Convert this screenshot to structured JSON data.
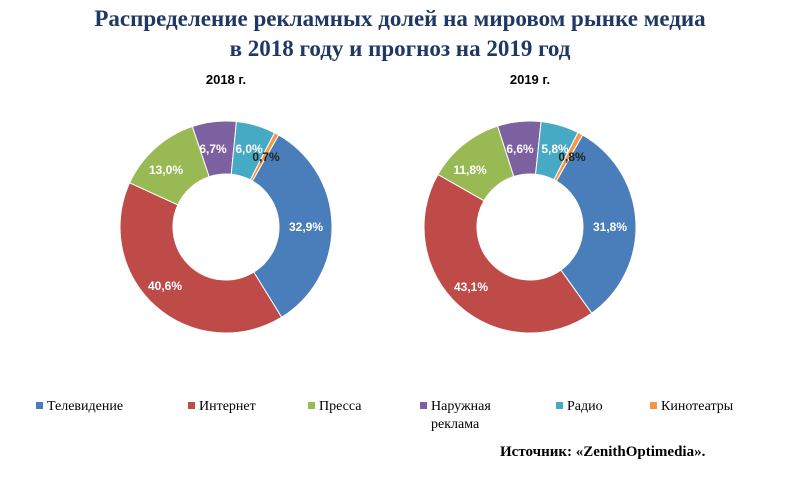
{
  "title_line1": "Распределение рекламных долей на мировом рынке медиа",
  "title_line2": "в 2018 году и прогноз на 2019 год",
  "source": "Источник: «ZenithOptimedia».",
  "chart_data": [
    {
      "type": "pie",
      "variant": "donut",
      "title": "2018 г.",
      "categories": [
        "Телевидение",
        "Интернет",
        "Пресса",
        "Наружная реклама",
        "Радио",
        "Кинотеатры"
      ],
      "values": [
        32.9,
        40.6,
        13.0,
        6.7,
        6.0,
        0.7
      ],
      "labels": [
        "32,9%",
        "40,6%",
        "13,0%",
        "6,7%",
        "6,0%",
        "0,7%"
      ]
    },
    {
      "type": "pie",
      "variant": "donut",
      "title": "2019 г.",
      "categories": [
        "Телевидение",
        "Интернет",
        "Пресса",
        "Наружная реклама",
        "Радио",
        "Кинотеатры"
      ],
      "values": [
        31.8,
        43.1,
        11.8,
        6.6,
        5.8,
        0.8
      ],
      "labels": [
        "31,8%",
        "43,1%",
        "11,8%",
        "6,6%",
        "5,8%",
        "0,8%"
      ]
    }
  ],
  "legend": {
    "placement": "bottom",
    "items": [
      "Телевидение",
      "Интернет",
      "Пресса",
      "Наружная реклама",
      "Радио",
      "Кинотеатры"
    ]
  },
  "colors": [
    "#4a7ebb",
    "#be4b48",
    "#98b954",
    "#7d60a0",
    "#46aac5",
    "#f79646"
  ]
}
